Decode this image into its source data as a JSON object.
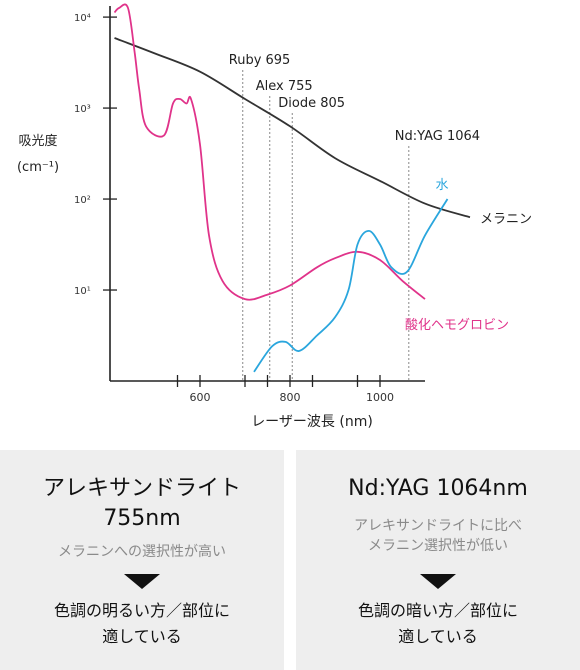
{
  "chart_data": {
    "type": "line",
    "ylabel_lines": [
      "吸光度",
      "(cm⁻¹)"
    ],
    "xlabel": "レーザー波長 (nm)",
    "xlim": [
      400,
      1100
    ],
    "ylim_exponent": [
      0,
      4.1
    ],
    "y_scale": "log",
    "x_ticks": [
      600,
      800,
      1000
    ],
    "x_minor_ticks": [
      550,
      700,
      750,
      850,
      950
    ],
    "y_ticks": [
      {
        "exp": 1,
        "label": "10¹"
      },
      {
        "exp": 2,
        "label": "10²"
      },
      {
        "exp": 3,
        "label": "10³"
      },
      {
        "exp": 4,
        "label": "10⁴"
      }
    ],
    "reference_lines": [
      {
        "x": 695,
        "label": "Ruby 695"
      },
      {
        "x": 755,
        "label": "Alex 755"
      },
      {
        "x": 805,
        "label": "Diode 805"
      },
      {
        "x": 1064,
        "label": "Nd:YAG 1064"
      }
    ],
    "series": [
      {
        "name": "メラニン",
        "color": "#333333",
        "points": [
          [
            410,
            3.77
          ],
          [
            500,
            3.6
          ],
          [
            600,
            3.4
          ],
          [
            700,
            3.1
          ],
          [
            800,
            2.8
          ],
          [
            900,
            2.45
          ],
          [
            1000,
            2.2
          ],
          [
            1100,
            1.95
          ],
          [
            1200,
            1.8
          ]
        ]
      },
      {
        "name": "酸化ヘモグロビン",
        "color": "#e0338a",
        "points": [
          [
            410,
            4.05
          ],
          [
            420,
            4.1
          ],
          [
            440,
            4.1
          ],
          [
            455,
            3.6
          ],
          [
            465,
            3.2
          ],
          [
            480,
            2.8
          ],
          [
            520,
            2.7
          ],
          [
            540,
            3.05
          ],
          [
            555,
            3.1
          ],
          [
            570,
            3.05
          ],
          [
            580,
            3.1
          ],
          [
            600,
            2.6
          ],
          [
            620,
            1.6
          ],
          [
            650,
            1.1
          ],
          [
            700,
            0.9
          ],
          [
            750,
            0.95
          ],
          [
            800,
            1.05
          ],
          [
            860,
            1.25
          ],
          [
            900,
            1.35
          ],
          [
            950,
            1.42
          ],
          [
            1000,
            1.33
          ],
          [
            1050,
            1.1
          ],
          [
            1100,
            0.9
          ]
        ]
      },
      {
        "name": "水",
        "color": "#2aa6dd",
        "points": [
          [
            720,
            0.1
          ],
          [
            760,
            0.38
          ],
          [
            790,
            0.43
          ],
          [
            820,
            0.33
          ],
          [
            860,
            0.5
          ],
          [
            900,
            0.7
          ],
          [
            930,
            1.0
          ],
          [
            950,
            1.5
          ],
          [
            975,
            1.65
          ],
          [
            1000,
            1.5
          ],
          [
            1025,
            1.25
          ],
          [
            1060,
            1.2
          ],
          [
            1100,
            1.6
          ],
          [
            1150,
            2.0
          ]
        ]
      }
    ]
  },
  "panels": {
    "left": {
      "title_line1": "アレキサンドライト",
      "title_line2": "755nm",
      "sub_line1": "メラニンへの選択性が高い",
      "result_line1": "色調の明るい方／部位に",
      "result_line2": "適している"
    },
    "right": {
      "title_line1": "Nd:YAG 1064nm",
      "sub_line1": "アレキサンドライトに比べ",
      "sub_line2": "メラニン選択性が低い",
      "result_line1": "色調の暗い方／部位に",
      "result_line2": "適している"
    }
  }
}
